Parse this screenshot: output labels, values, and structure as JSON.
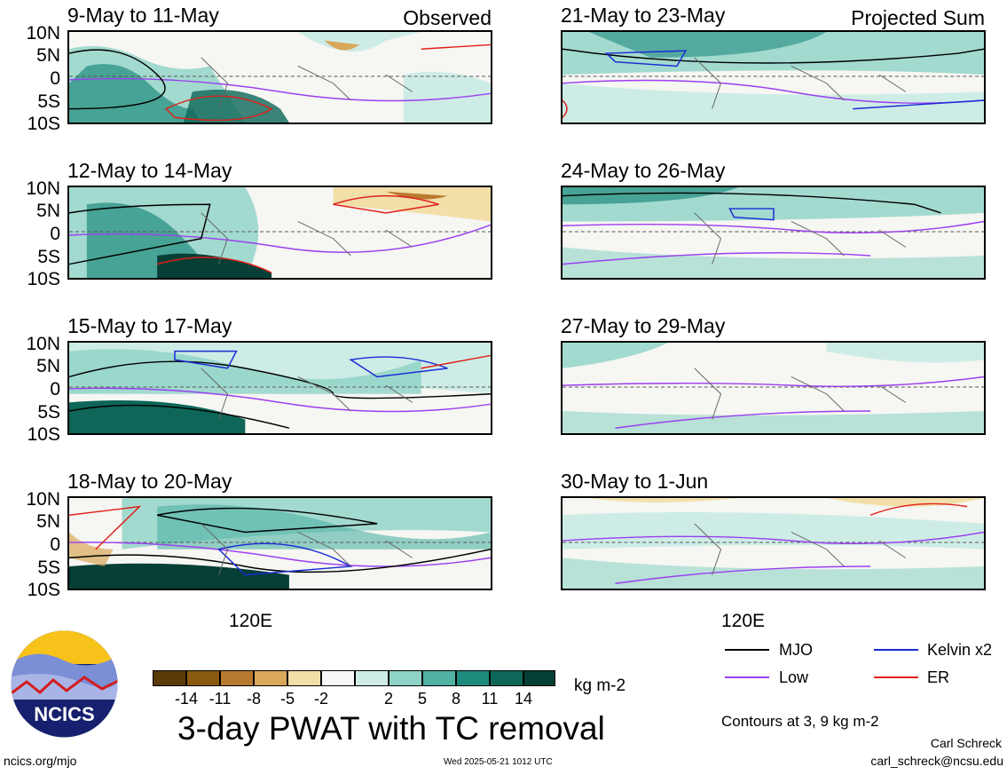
{
  "panels_left": [
    {
      "title": "9-May to 11-May",
      "tag": "Observed"
    },
    {
      "title": "12-May to 14-May",
      "tag": ""
    },
    {
      "title": "15-May to 17-May",
      "tag": ""
    },
    {
      "title": "18-May to 20-May",
      "tag": ""
    }
  ],
  "panels_right": [
    {
      "title": "21-May to 23-May",
      "tag": "Projected Sum"
    },
    {
      "title": "24-May to 26-May",
      "tag": ""
    },
    {
      "title": "27-May to 29-May",
      "tag": ""
    },
    {
      "title": "30-May to 1-Jun",
      "tag": ""
    }
  ],
  "lat_labels": [
    "10N",
    "5N",
    "0",
    "5S",
    "10S"
  ],
  "lon_label": "120E",
  "legend": {
    "items": [
      {
        "label": "MJO",
        "color": "#000000"
      },
      {
        "label": "Kelvin x2",
        "color": "#1a2bd6"
      },
      {
        "label": "Low",
        "color": "#9b3ff0"
      },
      {
        "label": "ER",
        "color": "#e0201a"
      }
    ],
    "contours_note": "Contours at 3, 9 kg m-2"
  },
  "colorbar": {
    "colors": [
      "#5a3a06",
      "#8a5a10",
      "#b87a2e",
      "#d9a85a",
      "#f2dfa8",
      "#f7f7f7",
      "#cdece6",
      "#8fd3c6",
      "#4fb2a3",
      "#1f8b7e",
      "#0d6658",
      "#053f36"
    ],
    "labels": [
      "-14",
      "-11",
      "-8",
      "-5",
      "-2",
      "2",
      "5",
      "8",
      "11",
      "14"
    ],
    "unit": "kg m-2"
  },
  "main_title": "3-day PWAT with TC removal",
  "logo_text": "NCICS",
  "site": "ncics.org/mjo",
  "timestamp": "Wed 2025-05-21 1012 UTC",
  "author": "Carl Schreck",
  "email": "carl_schreck@ncsu.edu"
}
